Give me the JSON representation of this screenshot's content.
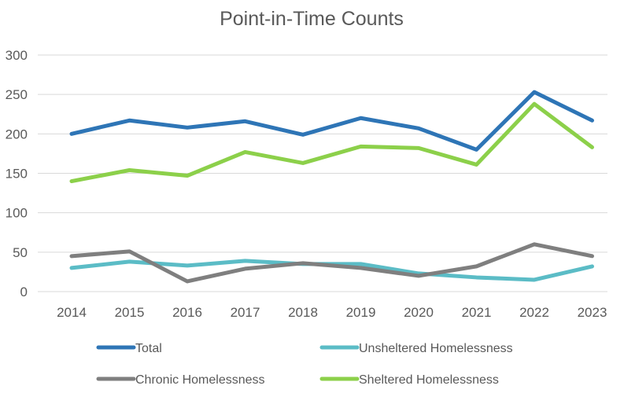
{
  "chart_data": {
    "type": "line",
    "title": "Point-in-Time Counts",
    "xlabel": "",
    "ylabel": "",
    "categories": [
      "2014",
      "2015",
      "2016",
      "2017",
      "2018",
      "2019",
      "2020",
      "2021",
      "2022",
      "2023"
    ],
    "ylim": [
      0,
      300
    ],
    "yticks": [
      0,
      50,
      100,
      150,
      200,
      250,
      300
    ],
    "grid": "horizontal",
    "legend_position": "bottom",
    "series": [
      {
        "name": "Total",
        "color": "#2e75b6",
        "values": [
          200,
          217,
          208,
          216,
          199,
          220,
          207,
          180,
          253,
          217
        ]
      },
      {
        "name": "Unsheltered Homelessness",
        "color": "#5bbcc6",
        "values": [
          30,
          38,
          33,
          39,
          35,
          35,
          23,
          18,
          15,
          32
        ]
      },
      {
        "name": "Chronic Homelessness",
        "color": "#7f7f7f",
        "values": [
          45,
          51,
          13,
          29,
          36,
          30,
          20,
          32,
          60,
          45
        ]
      },
      {
        "name": "Sheltered Homelessness",
        "color": "#8cd04a",
        "values": [
          140,
          154,
          147,
          177,
          163,
          184,
          182,
          161,
          238,
          183
        ]
      }
    ]
  }
}
